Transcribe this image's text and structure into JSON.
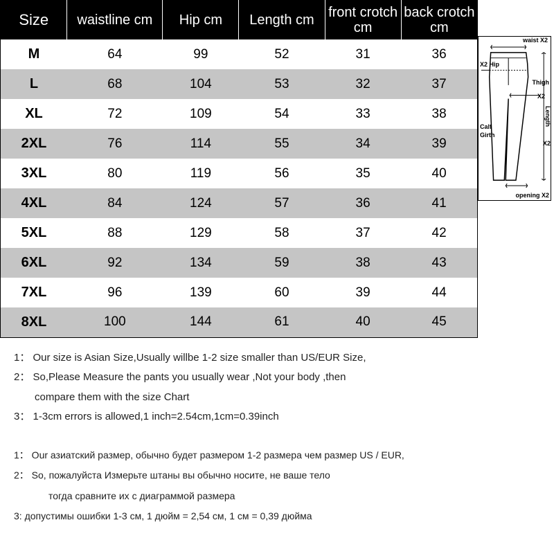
{
  "table": {
    "columns": [
      "Size",
      "waistline cm",
      "Hip cm",
      "Length cm",
      "front crotch cm",
      "back crotch cm"
    ],
    "column_widths_pct": [
      14,
      20,
      16,
      18,
      16,
      16
    ],
    "header_bg": "#000000",
    "header_fg": "#ffffff",
    "row_odd_bg": "#ffffff",
    "row_even_bg": "#c5c5c5",
    "rows": [
      [
        "M",
        "64",
        "99",
        "52",
        "31",
        "36"
      ],
      [
        "L",
        "68",
        "104",
        "53",
        "32",
        "37"
      ],
      [
        "XL",
        "72",
        "109",
        "54",
        "33",
        "38"
      ],
      [
        "2XL",
        "76",
        "114",
        "55",
        "34",
        "39"
      ],
      [
        "3XL",
        "80",
        "119",
        "56",
        "35",
        "40"
      ],
      [
        "4XL",
        "84",
        "124",
        "57",
        "36",
        "41"
      ],
      [
        "5XL",
        "88",
        "129",
        "58",
        "37",
        "42"
      ],
      [
        "6XL",
        "92",
        "134",
        "59",
        "38",
        "43"
      ],
      [
        "7XL",
        "96",
        "139",
        "60",
        "39",
        "44"
      ],
      [
        "8XL",
        "100",
        "144",
        "61",
        "40",
        "45"
      ]
    ]
  },
  "diagram": {
    "labels": {
      "waist": "waist X2",
      "hip": "X2 Hip",
      "thigh": "Thigh",
      "thigh_x2": "X2",
      "calf": "Calf",
      "girth": "Girth",
      "length": "Length",
      "length_x2": "X2",
      "opening": "opening X2"
    },
    "stroke": "#000000",
    "bg": "#ffffff"
  },
  "notes_en": [
    {
      "prefix": "1：",
      "text": "Our size is Asian Size,Usually willbe 1-2 size smaller than US/EUR Size,"
    },
    {
      "prefix": "2：",
      "text": "So,Please Measure the pants you usually wear ,Not your body ,then"
    },
    {
      "prefix": "",
      "text": "compare them with the size Chart"
    },
    {
      "prefix": "3：",
      "text": "1-3cm errors is allowed,1 inch=2.54cm,1cm=0.39inch"
    }
  ],
  "notes_ru": [
    {
      "prefix": "1：",
      "text": "Our азиатский размер, обычно будет размером 1-2 размера чем размер US / EUR,"
    },
    {
      "prefix": "2：",
      "text": "So, пожалуйста Измерьте штаны вы обычно носите, не ваше тело"
    },
    {
      "prefix": "",
      "text": "тогда сравните их с диаграммой размера"
    },
    {
      "prefix": "3:",
      "text": "допустимы ошибки 1-3 см, 1 дюйм = 2,54 см, 1 см = 0,39 дюйма"
    }
  ]
}
